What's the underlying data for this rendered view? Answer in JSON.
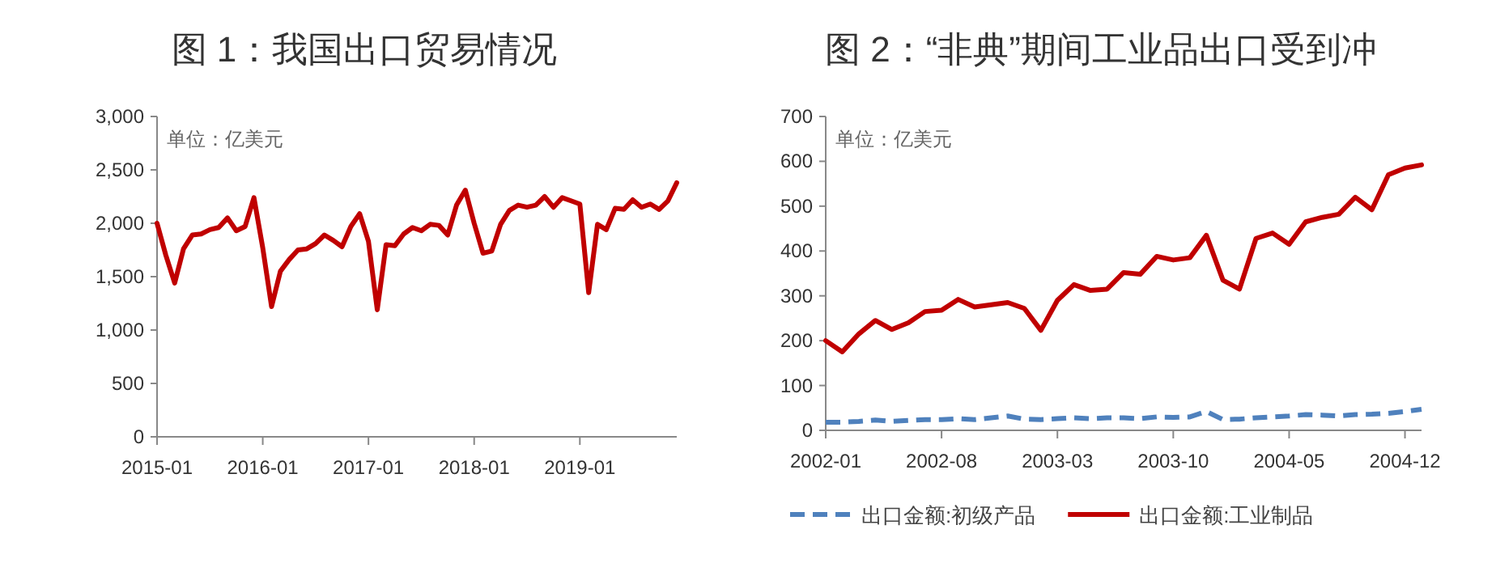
{
  "chart_data": [
    {
      "type": "line",
      "title": "图 1：我国出口贸易情况",
      "annotations": [
        "单位：亿美元"
      ],
      "legend": false,
      "grid": false,
      "marker": "none",
      "line_style": "solid",
      "x": [
        "2015-01",
        "2015-02",
        "2015-03",
        "2015-04",
        "2015-05",
        "2015-06",
        "2015-07",
        "2015-08",
        "2015-09",
        "2015-10",
        "2015-11",
        "2015-12",
        "2016-01",
        "2016-02",
        "2016-03",
        "2016-04",
        "2016-05",
        "2016-06",
        "2016-07",
        "2016-08",
        "2016-09",
        "2016-10",
        "2016-11",
        "2016-12",
        "2017-01",
        "2017-02",
        "2017-03",
        "2017-04",
        "2017-05",
        "2017-06",
        "2017-07",
        "2017-08",
        "2017-09",
        "2017-10",
        "2017-11",
        "2017-12",
        "2018-01",
        "2018-02",
        "2018-03",
        "2018-04",
        "2018-05",
        "2018-06",
        "2018-07",
        "2018-08",
        "2018-09",
        "2018-10",
        "2018-11",
        "2018-12",
        "2019-01",
        "2019-02",
        "2019-03",
        "2019-04",
        "2019-05",
        "2019-06",
        "2019-07",
        "2019-08",
        "2019-09",
        "2019-10",
        "2019-11",
        "2019-12"
      ],
      "series": [
        {
          "color": "#c00000",
          "values": [
            2000,
            1700,
            1440,
            1760,
            1890,
            1900,
            1940,
            1960,
            2050,
            1930,
            1970,
            2240,
            1770,
            1220,
            1550,
            1660,
            1750,
            1760,
            1810,
            1890,
            1840,
            1780,
            1970,
            2090,
            1830,
            1190,
            1800,
            1790,
            1900,
            1960,
            1930,
            1990,
            1980,
            1890,
            2170,
            2310,
            2000,
            1720,
            1740,
            1990,
            2120,
            2170,
            2150,
            2170,
            2250,
            2150,
            2240,
            2210,
            2180,
            1350,
            1990,
            1940,
            2140,
            2130,
            2220,
            2150,
            2180,
            2130,
            2210,
            2380
          ]
        }
      ],
      "xlim": [
        "2015-01",
        "2019-12"
      ],
      "xticks": [
        "2015-01",
        "2016-01",
        "2017-01",
        "2018-01",
        "2019-01"
      ],
      "ylim": [
        0,
        3000
      ],
      "yticks": [
        0,
        500,
        {
          "value": 1000,
          "label": "1,000"
        },
        {
          "value": 1500,
          "label": "1,500"
        },
        {
          "value": 2000,
          "label": "2,000"
        },
        {
          "value": 2500,
          "label": "2,500"
        },
        {
          "value": 3000,
          "label": "3,000"
        }
      ]
    },
    {
      "type": "line",
      "title": "图 2：“非典”期间工业品出口受到冲",
      "annotations": [
        "单位：亿美元"
      ],
      "legend": "bottom",
      "grid": false,
      "marker": "none",
      "x": [
        "2002-01",
        "2002-02",
        "2002-03",
        "2002-04",
        "2002-05",
        "2002-06",
        "2002-07",
        "2002-08",
        "2002-09",
        "2002-10",
        "2002-11",
        "2002-12",
        "2003-01",
        "2003-02",
        "2003-03",
        "2003-04",
        "2003-05",
        "2003-06",
        "2003-07",
        "2003-08",
        "2003-09",
        "2003-10",
        "2003-11",
        "2003-12",
        "2004-01",
        "2004-02",
        "2004-03",
        "2004-04",
        "2004-05",
        "2004-06",
        "2004-07",
        "2004-08",
        "2004-09",
        "2004-10",
        "2004-11",
        "2004-12",
        "2005-01"
      ],
      "series": [
        {
          "name": "出口金额:初级产品",
          "color": "#4f81bd",
          "line_style": "dashed",
          "values": [
            18,
            18,
            20,
            23,
            20,
            22,
            24,
            24,
            26,
            24,
            28,
            32,
            25,
            24,
            26,
            28,
            26,
            28,
            28,
            26,
            30,
            29,
            30,
            42,
            24,
            25,
            28,
            30,
            32,
            35,
            34,
            32,
            35,
            36,
            38,
            42,
            47
          ]
        },
        {
          "name": "出口金额:工业制品",
          "color": "#c00000",
          "line_style": "solid",
          "values": [
            200,
            175,
            215,
            245,
            225,
            240,
            265,
            268,
            292,
            275,
            280,
            285,
            272,
            223,
            290,
            325,
            312,
            315,
            352,
            348,
            388,
            380,
            385,
            435,
            335,
            315,
            428,
            440,
            415,
            465,
            475,
            482,
            520,
            492,
            570,
            585,
            592
          ]
        }
      ],
      "xlim": [
        "2002-01",
        "2005-01"
      ],
      "xticks": [
        "2002-01",
        "2002-08",
        "2003-03",
        "2003-10",
        "2004-05",
        "2004-12"
      ],
      "ylim": [
        0,
        700
      ],
      "yticks": [
        0,
        100,
        200,
        300,
        400,
        500,
        600,
        700
      ]
    }
  ]
}
